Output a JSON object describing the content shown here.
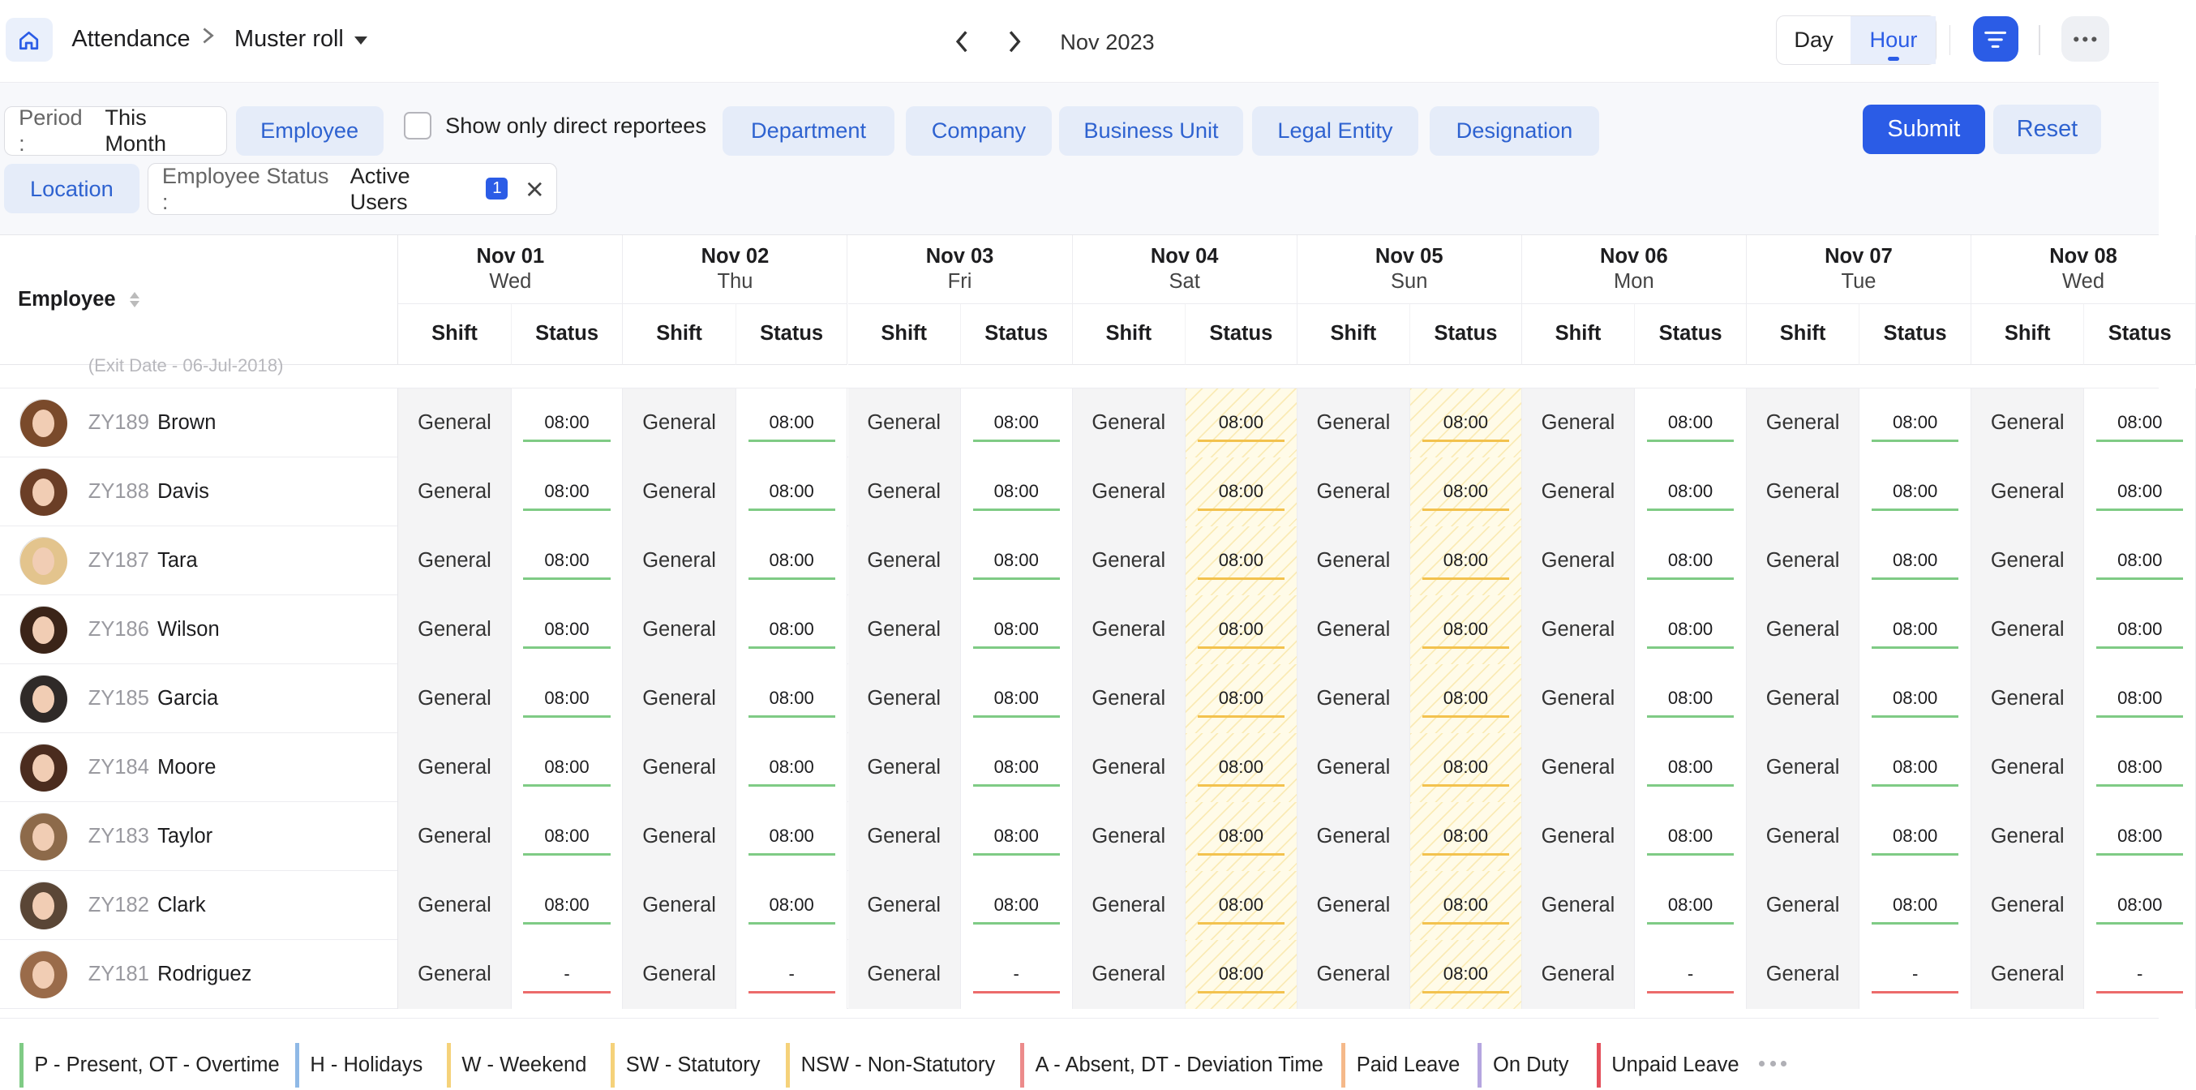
{
  "breadcrumb": {
    "root": "Attendance",
    "current": "Muster roll"
  },
  "period_nav": {
    "month_label": "Nov 2023"
  },
  "view_toggle": {
    "day": "Day",
    "hour": "Hour",
    "active": "Hour"
  },
  "filters": {
    "period_label": "Period :",
    "period_value": "This Month",
    "employee": "Employee",
    "direct_reportees": "Show only direct reportees",
    "department": "Department",
    "company": "Company",
    "business_unit": "Business Unit",
    "legal_entity": "Legal Entity",
    "designation": "Designation",
    "location": "Location",
    "employee_status_label": "Employee Status :",
    "employee_status_value": "Active Users",
    "employee_status_count": "1",
    "submit": "Submit",
    "reset": "Reset"
  },
  "table": {
    "employee_header": "Employee",
    "shift_header": "Shift",
    "status_header": "Status",
    "exit_note": "(Exit Date - 06-Jul-2018)",
    "days": [
      {
        "date": "Nov 01",
        "weekday": "Wed"
      },
      {
        "date": "Nov 02",
        "weekday": "Thu"
      },
      {
        "date": "Nov 03",
        "weekday": "Fri"
      },
      {
        "date": "Nov 04",
        "weekday": "Sat"
      },
      {
        "date": "Nov 05",
        "weekday": "Sun"
      },
      {
        "date": "Nov 06",
        "weekday": "Mon"
      },
      {
        "date": "Nov 07",
        "weekday": "Tue"
      },
      {
        "date": "Nov 08",
        "weekday": "Wed"
      }
    ],
    "shift_value": "General",
    "rows": [
      {
        "id": "ZY189",
        "name": "Brown",
        "status": [
          "08:00",
          "08:00",
          "08:00",
          "08:00",
          "08:00",
          "08:00",
          "08:00",
          "08:00"
        ]
      },
      {
        "id": "ZY188",
        "name": "Davis",
        "status": [
          "08:00",
          "08:00",
          "08:00",
          "08:00",
          "08:00",
          "08:00",
          "08:00",
          "08:00"
        ]
      },
      {
        "id": "ZY187",
        "name": "Tara",
        "status": [
          "08:00",
          "08:00",
          "08:00",
          "08:00",
          "08:00",
          "08:00",
          "08:00",
          "08:00"
        ]
      },
      {
        "id": "ZY186",
        "name": "Wilson",
        "status": [
          "08:00",
          "08:00",
          "08:00",
          "08:00",
          "08:00",
          "08:00",
          "08:00",
          "08:00"
        ]
      },
      {
        "id": "ZY185",
        "name": "Garcia",
        "status": [
          "08:00",
          "08:00",
          "08:00",
          "08:00",
          "08:00",
          "08:00",
          "08:00",
          "08:00"
        ]
      },
      {
        "id": "ZY184",
        "name": "Moore",
        "status": [
          "08:00",
          "08:00",
          "08:00",
          "08:00",
          "08:00",
          "08:00",
          "08:00",
          "08:00"
        ]
      },
      {
        "id": "ZY183",
        "name": "Taylor",
        "status": [
          "08:00",
          "08:00",
          "08:00",
          "08:00",
          "08:00",
          "08:00",
          "08:00",
          "08:00"
        ]
      },
      {
        "id": "ZY182",
        "name": "Clark",
        "status": [
          "08:00",
          "08:00",
          "08:00",
          "08:00",
          "08:00",
          "08:00",
          "08:00",
          "08:00"
        ]
      },
      {
        "id": "ZY181",
        "name": "Rodriguez",
        "status": [
          "-",
          "-",
          "-",
          "08:00",
          "08:00",
          "-",
          "-",
          "-"
        ]
      }
    ]
  },
  "legend": [
    {
      "label": "P - Present, OT - Overtime",
      "color": "#7fcb85"
    },
    {
      "label": "H - Holidays",
      "color": "#8fb9e6"
    },
    {
      "label": "W - Weekend",
      "color": "#f5d27a"
    },
    {
      "label": "SW - Statutory",
      "color": "#f5d27a"
    },
    {
      "label": "NSW - Non-Statutory",
      "color": "#f5d27a"
    },
    {
      "label": "A - Absent, DT - Deviation Time",
      "color": "#ec8b8b"
    },
    {
      "label": "Paid Leave",
      "color": "#f5b98a"
    },
    {
      "label": "On Duty",
      "color": "#b5a6e0"
    },
    {
      "label": "Unpaid Leave",
      "color": "#e4505c"
    }
  ],
  "colors": {
    "accent": "#2b5ce6",
    "chip_bg": "#e5ecf9",
    "chip_text": "#2e62d0",
    "present_line": "#7fcb85",
    "weekend_line": "#f3c24e",
    "absent_line": "#ec6b6b"
  },
  "icons": [
    "home-icon",
    "chevron-right-icon",
    "caret-down-icon",
    "chevron-left-icon",
    "filter-icon",
    "more-icon",
    "close-icon",
    "sort-icon"
  ]
}
